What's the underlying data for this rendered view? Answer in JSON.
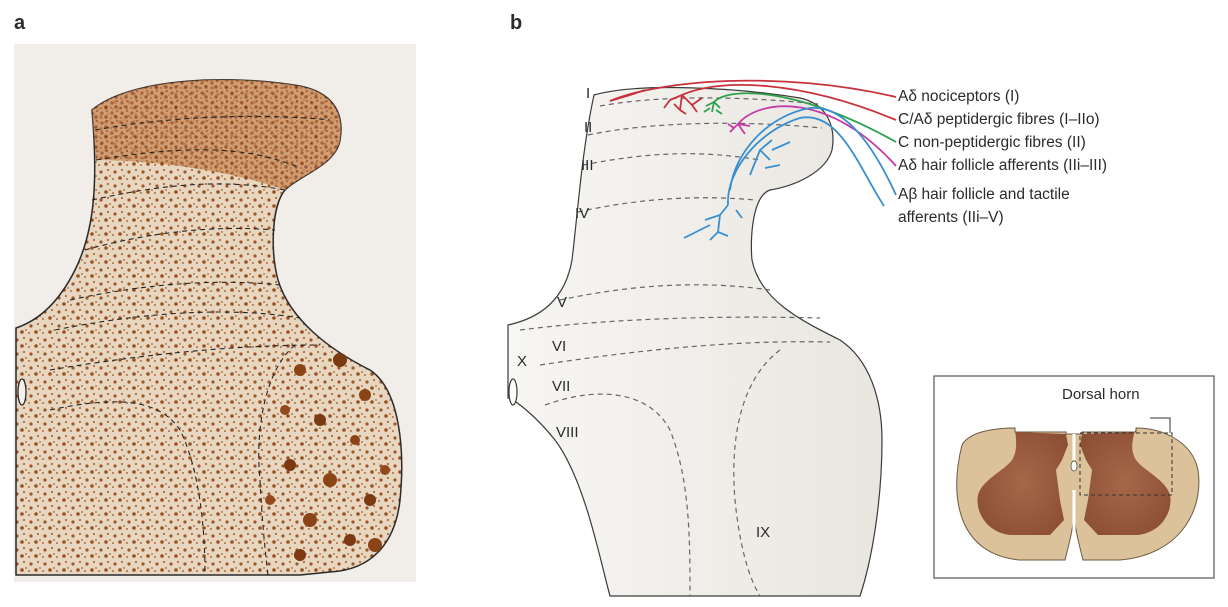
{
  "panel_a": {
    "label": "a"
  },
  "panel_b": {
    "label": "b",
    "laminae": [
      "I",
      "II",
      "III",
      "IV",
      "V",
      "VI",
      "VII",
      "VIII",
      "IX",
      "X"
    ],
    "fibres": [
      {
        "label": "Aδ nociceptors (I)",
        "color": "#c8323c"
      },
      {
        "label": "C/Aδ peptidergic fibres (I–IIo)",
        "color": "#c8323c"
      },
      {
        "label": "C non-peptidergic fibres (II)",
        "color": "#2ea24a"
      },
      {
        "label": "Aδ hair follicle afferents (IIi–III)",
        "color": "#c63aa8"
      },
      {
        "label": "Aβ hair follicle and tactile",
        "label2": "afferents (IIi–V)",
        "color": "#3a8fd0"
      }
    ],
    "inset": {
      "label": "Dorsal horn"
    }
  }
}
